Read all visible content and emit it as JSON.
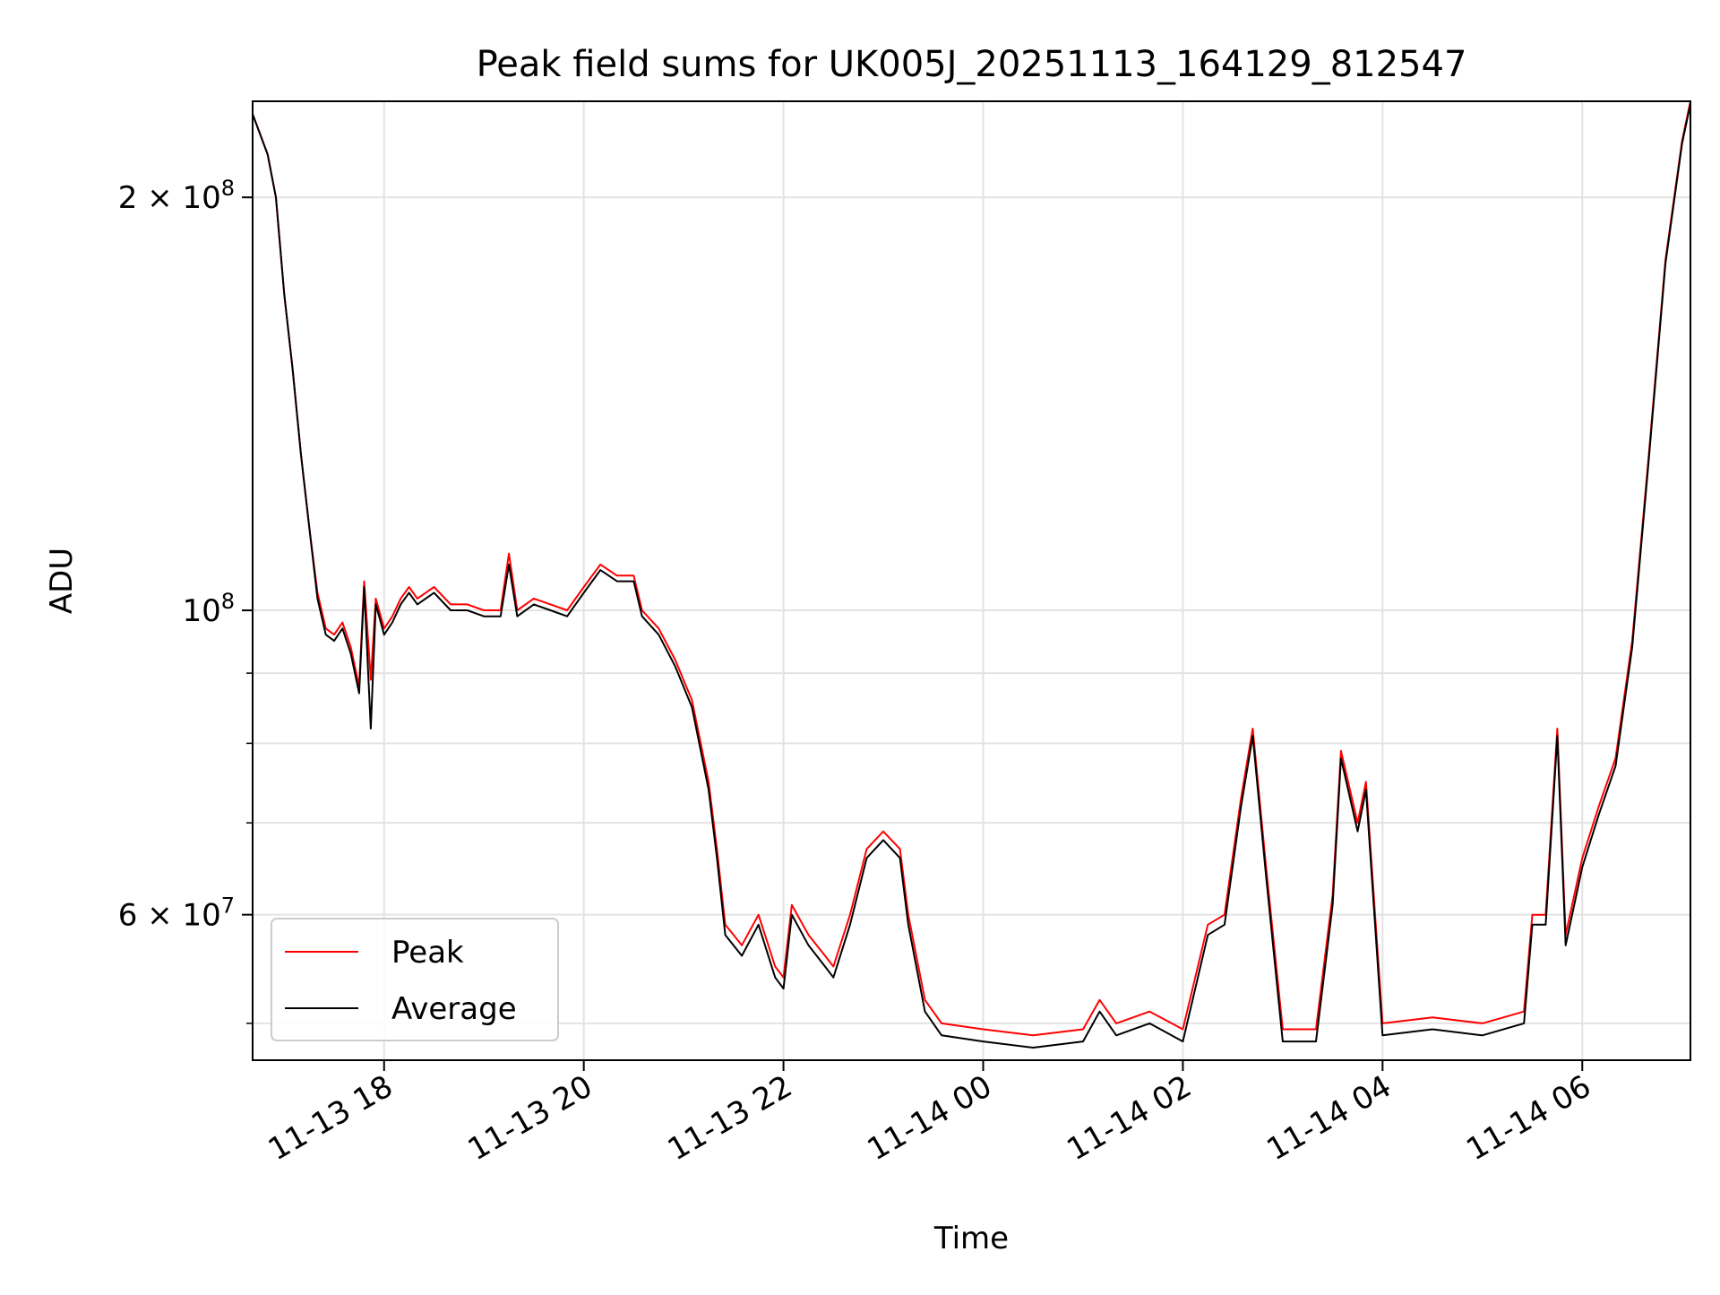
{
  "chart_data": {
    "type": "line",
    "title": "Peak field sums for UK005J_20251113_164129_812547",
    "xlabel": "Time",
    "ylabel": "ADU",
    "x_axis": {
      "type": "date",
      "range": [
        "2025-11-13T16:41",
        "2025-11-14T07:05"
      ],
      "ticks": [
        {
          "value": "2025-11-13T18:00",
          "label": "11-13 18"
        },
        {
          "value": "2025-11-13T20:00",
          "label": "11-13 20"
        },
        {
          "value": "2025-11-13T22:00",
          "label": "11-13 22"
        },
        {
          "value": "2025-11-14T00:00",
          "label": "11-14 00"
        },
        {
          "value": "2025-11-14T02:00",
          "label": "11-14 02"
        },
        {
          "value": "2025-11-14T04:00",
          "label": "11-14 04"
        },
        {
          "value": "2025-11-14T06:00",
          "label": "11-14 06"
        }
      ]
    },
    "y_axis": {
      "scale": "log",
      "range": [
        47000000,
        235000000
      ],
      "major_ticks": [
        {
          "value": 60000000,
          "label": "6 × 10⁷",
          "mant": "6 × 10",
          "exp": "7"
        },
        {
          "value": 100000000,
          "label": "10⁸",
          "mant": "10",
          "exp": "8"
        },
        {
          "value": 200000000,
          "label": "2 × 10⁸",
          "mant": "2 × 10",
          "exp": "8"
        }
      ],
      "minor_ticks": [
        50000000,
        70000000,
        80000000,
        90000000
      ]
    },
    "grid": true,
    "legend_position": "lower-left",
    "series": [
      {
        "name": "Peak",
        "color": "#ff0000",
        "points": [
          [
            "2025-11-13T16:41",
            230000000
          ],
          [
            "2025-11-13T16:50",
            215000000
          ],
          [
            "2025-11-13T16:55",
            200000000
          ],
          [
            "2025-11-13T17:00",
            170000000
          ],
          [
            "2025-11-13T17:05",
            150000000
          ],
          [
            "2025-11-13T17:10",
            130000000
          ],
          [
            "2025-11-13T17:15",
            115000000
          ],
          [
            "2025-11-13T17:20",
            103000000
          ],
          [
            "2025-11-13T17:25",
            97000000
          ],
          [
            "2025-11-13T17:30",
            96000000
          ],
          [
            "2025-11-13T17:35",
            98000000
          ],
          [
            "2025-11-13T17:40",
            94000000
          ],
          [
            "2025-11-13T17:45",
            88000000
          ],
          [
            "2025-11-13T17:48",
            105000000
          ],
          [
            "2025-11-13T17:52",
            89000000
          ],
          [
            "2025-11-13T17:55",
            102000000
          ],
          [
            "2025-11-13T18:00",
            97000000
          ],
          [
            "2025-11-13T18:05",
            99000000
          ],
          [
            "2025-11-13T18:10",
            102000000
          ],
          [
            "2025-11-13T18:15",
            104000000
          ],
          [
            "2025-11-13T18:20",
            102000000
          ],
          [
            "2025-11-13T18:30",
            104000000
          ],
          [
            "2025-11-13T18:40",
            101000000
          ],
          [
            "2025-11-13T18:50",
            101000000
          ],
          [
            "2025-11-13T19:00",
            100000000
          ],
          [
            "2025-11-13T19:10",
            100000000
          ],
          [
            "2025-11-13T19:15",
            110000000
          ],
          [
            "2025-11-13T19:20",
            100000000
          ],
          [
            "2025-11-13T19:30",
            102000000
          ],
          [
            "2025-11-13T19:40",
            101000000
          ],
          [
            "2025-11-13T19:50",
            100000000
          ],
          [
            "2025-11-13T20:00",
            104000000
          ],
          [
            "2025-11-13T20:10",
            108000000
          ],
          [
            "2025-11-13T20:20",
            106000000
          ],
          [
            "2025-11-13T20:30",
            106000000
          ],
          [
            "2025-11-13T20:35",
            100000000
          ],
          [
            "2025-11-13T20:45",
            97000000
          ],
          [
            "2025-11-13T20:55",
            92000000
          ],
          [
            "2025-11-13T21:05",
            86000000
          ],
          [
            "2025-11-13T21:15",
            75000000
          ],
          [
            "2025-11-13T21:20",
            67000000
          ],
          [
            "2025-11-13T21:25",
            59000000
          ],
          [
            "2025-11-13T21:35",
            57000000
          ],
          [
            "2025-11-13T21:45",
            60000000
          ],
          [
            "2025-11-13T21:55",
            55000000
          ],
          [
            "2025-11-13T22:00",
            54000000
          ],
          [
            "2025-11-13T22:05",
            61000000
          ],
          [
            "2025-11-13T22:15",
            58000000
          ],
          [
            "2025-11-13T22:25",
            56000000
          ],
          [
            "2025-11-13T22:30",
            55000000
          ],
          [
            "2025-11-13T22:40",
            60000000
          ],
          [
            "2025-11-13T22:50",
            67000000
          ],
          [
            "2025-11-13T23:00",
            69000000
          ],
          [
            "2025-11-13T23:10",
            67000000
          ],
          [
            "2025-11-13T23:15",
            60000000
          ],
          [
            "2025-11-13T23:25",
            52000000
          ],
          [
            "2025-11-13T23:35",
            50000000
          ],
          [
            "2025-11-14T00:00",
            49500000
          ],
          [
            "2025-11-14T00:30",
            49000000
          ],
          [
            "2025-11-14T01:00",
            49500000
          ],
          [
            "2025-11-14T01:10",
            52000000
          ],
          [
            "2025-11-14T01:20",
            50000000
          ],
          [
            "2025-11-14T01:40",
            51000000
          ],
          [
            "2025-11-14T02:00",
            49500000
          ],
          [
            "2025-11-14T02:15",
            59000000
          ],
          [
            "2025-11-14T02:25",
            60000000
          ],
          [
            "2025-11-14T02:35",
            73000000
          ],
          [
            "2025-11-14T02:42",
            82000000
          ],
          [
            "2025-11-14T02:50",
            65000000
          ],
          [
            "2025-11-14T03:00",
            49500000
          ],
          [
            "2025-11-14T03:20",
            49500000
          ],
          [
            "2025-11-14T03:30",
            62000000
          ],
          [
            "2025-11-14T03:35",
            79000000
          ],
          [
            "2025-11-14T03:45",
            70000000
          ],
          [
            "2025-11-14T03:50",
            75000000
          ],
          [
            "2025-11-14T04:00",
            50000000
          ],
          [
            "2025-11-14T04:30",
            50500000
          ],
          [
            "2025-11-14T05:00",
            50000000
          ],
          [
            "2025-11-14T05:25",
            51000000
          ],
          [
            "2025-11-14T05:30",
            60000000
          ],
          [
            "2025-11-14T05:38",
            60000000
          ],
          [
            "2025-11-14T05:45",
            82000000
          ],
          [
            "2025-11-14T05:50",
            58000000
          ],
          [
            "2025-11-14T06:00",
            66000000
          ],
          [
            "2025-11-14T06:10",
            72000000
          ],
          [
            "2025-11-14T06:20",
            78000000
          ],
          [
            "2025-11-14T06:30",
            95000000
          ],
          [
            "2025-11-14T06:40",
            130000000
          ],
          [
            "2025-11-14T06:50",
            180000000
          ],
          [
            "2025-11-14T07:00",
            220000000
          ],
          [
            "2025-11-14T07:05",
            235000000
          ]
        ]
      },
      {
        "name": "Average",
        "color": "#000000",
        "points": [
          [
            "2025-11-13T16:41",
            230000000
          ],
          [
            "2025-11-13T16:50",
            215000000
          ],
          [
            "2025-11-13T16:55",
            200000000
          ],
          [
            "2025-11-13T17:00",
            170000000
          ],
          [
            "2025-11-13T17:05",
            150000000
          ],
          [
            "2025-11-13T17:10",
            130000000
          ],
          [
            "2025-11-13T17:15",
            115000000
          ],
          [
            "2025-11-13T17:20",
            102000000
          ],
          [
            "2025-11-13T17:25",
            96000000
          ],
          [
            "2025-11-13T17:30",
            95000000
          ],
          [
            "2025-11-13T17:35",
            97000000
          ],
          [
            "2025-11-13T17:40",
            93000000
          ],
          [
            "2025-11-13T17:45",
            87000000
          ],
          [
            "2025-11-13T17:48",
            104000000
          ],
          [
            "2025-11-13T17:52",
            82000000
          ],
          [
            "2025-11-13T17:55",
            101000000
          ],
          [
            "2025-11-13T18:00",
            96000000
          ],
          [
            "2025-11-13T18:05",
            98000000
          ],
          [
            "2025-11-13T18:10",
            101000000
          ],
          [
            "2025-11-13T18:15",
            103000000
          ],
          [
            "2025-11-13T18:20",
            101000000
          ],
          [
            "2025-11-13T18:30",
            103000000
          ],
          [
            "2025-11-13T18:40",
            100000000
          ],
          [
            "2025-11-13T18:50",
            100000000
          ],
          [
            "2025-11-13T19:00",
            99000000
          ],
          [
            "2025-11-13T19:10",
            99000000
          ],
          [
            "2025-11-13T19:15",
            108000000
          ],
          [
            "2025-11-13T19:20",
            99000000
          ],
          [
            "2025-11-13T19:30",
            101000000
          ],
          [
            "2025-11-13T19:40",
            100000000
          ],
          [
            "2025-11-13T19:50",
            99000000
          ],
          [
            "2025-11-13T20:00",
            103000000
          ],
          [
            "2025-11-13T20:10",
            107000000
          ],
          [
            "2025-11-13T20:20",
            105000000
          ],
          [
            "2025-11-13T20:30",
            105000000
          ],
          [
            "2025-11-13T20:35",
            99000000
          ],
          [
            "2025-11-13T20:45",
            96000000
          ],
          [
            "2025-11-13T20:55",
            91000000
          ],
          [
            "2025-11-13T21:05",
            85000000
          ],
          [
            "2025-11-13T21:15",
            74000000
          ],
          [
            "2025-11-13T21:20",
            66000000
          ],
          [
            "2025-11-13T21:25",
            58000000
          ],
          [
            "2025-11-13T21:35",
            56000000
          ],
          [
            "2025-11-13T21:45",
            59000000
          ],
          [
            "2025-11-13T21:55",
            54000000
          ],
          [
            "2025-11-13T22:00",
            53000000
          ],
          [
            "2025-11-13T22:05",
            60000000
          ],
          [
            "2025-11-13T22:15",
            57000000
          ],
          [
            "2025-11-13T22:25",
            55000000
          ],
          [
            "2025-11-13T22:30",
            54000000
          ],
          [
            "2025-11-13T22:40",
            59000000
          ],
          [
            "2025-11-13T22:50",
            66000000
          ],
          [
            "2025-11-13T23:00",
            68000000
          ],
          [
            "2025-11-13T23:10",
            66000000
          ],
          [
            "2025-11-13T23:15",
            59000000
          ],
          [
            "2025-11-13T23:25",
            51000000
          ],
          [
            "2025-11-13T23:35",
            49000000
          ],
          [
            "2025-11-14T00:00",
            48500000
          ],
          [
            "2025-11-14T00:30",
            48000000
          ],
          [
            "2025-11-14T01:00",
            48500000
          ],
          [
            "2025-11-14T01:10",
            51000000
          ],
          [
            "2025-11-14T01:20",
            49000000
          ],
          [
            "2025-11-14T01:40",
            50000000
          ],
          [
            "2025-11-14T02:00",
            48500000
          ],
          [
            "2025-11-14T02:15",
            58000000
          ],
          [
            "2025-11-14T02:25",
            59000000
          ],
          [
            "2025-11-14T02:35",
            72000000
          ],
          [
            "2025-11-14T02:42",
            81000000
          ],
          [
            "2025-11-14T02:50",
            64000000
          ],
          [
            "2025-11-14T03:00",
            48500000
          ],
          [
            "2025-11-14T03:20",
            48500000
          ],
          [
            "2025-11-14T03:30",
            61000000
          ],
          [
            "2025-11-14T03:35",
            78000000
          ],
          [
            "2025-11-14T03:45",
            69000000
          ],
          [
            "2025-11-14T03:50",
            74000000
          ],
          [
            "2025-11-14T04:00",
            49000000
          ],
          [
            "2025-11-14T04:30",
            49500000
          ],
          [
            "2025-11-14T05:00",
            49000000
          ],
          [
            "2025-11-14T05:25",
            50000000
          ],
          [
            "2025-11-14T05:30",
            59000000
          ],
          [
            "2025-11-14T05:38",
            59000000
          ],
          [
            "2025-11-14T05:45",
            81000000
          ],
          [
            "2025-11-14T05:50",
            57000000
          ],
          [
            "2025-11-14T06:00",
            65000000
          ],
          [
            "2025-11-14T06:10",
            71000000
          ],
          [
            "2025-11-14T06:20",
            77000000
          ],
          [
            "2025-11-14T06:30",
            94000000
          ],
          [
            "2025-11-14T06:40",
            129000000
          ],
          [
            "2025-11-14T06:50",
            179000000
          ],
          [
            "2025-11-14T07:00",
            219000000
          ],
          [
            "2025-11-14T07:05",
            234000000
          ]
        ]
      }
    ]
  }
}
